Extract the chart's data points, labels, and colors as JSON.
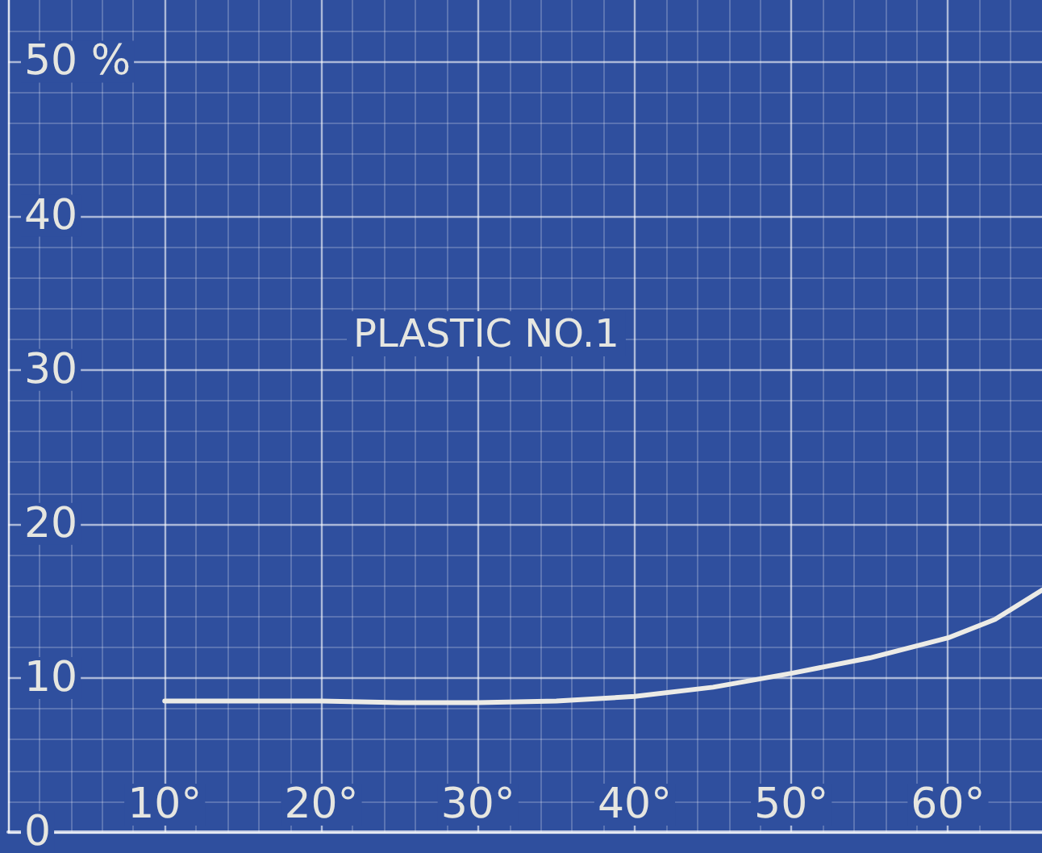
{
  "chart_data": {
    "type": "line",
    "title": "PLASTIC NO.1",
    "x": [
      10,
      15,
      20,
      25,
      30,
      35,
      40,
      45,
      50,
      55,
      60,
      63,
      66
    ],
    "series": [
      {
        "color": "#ecebe6",
        "values": [
          8.5,
          8.5,
          8.5,
          8.4,
          8.4,
          8.5,
          8.8,
          9.4,
          10.3,
          11.3,
          12.6,
          13.8,
          15.7
        ]
      }
    ],
    "xlim": [
      0,
      66
    ],
    "xticks": [
      {
        "value": 0,
        "label": null
      },
      {
        "value": 10,
        "label": "10°"
      },
      {
        "value": 20,
        "label": "20°"
      },
      {
        "value": 30,
        "label": "30°"
      },
      {
        "value": 40,
        "label": "40°"
      },
      {
        "value": 50,
        "label": "50°"
      },
      {
        "value": 60,
        "label": "60°"
      }
    ],
    "ylim": [
      0,
      54
    ],
    "yticks": [
      0,
      10,
      20,
      30,
      40,
      {
        "value": 50,
        "label": "50 %"
      }
    ],
    "grid": true,
    "marker": "none",
    "line_style": "solid"
  }
}
